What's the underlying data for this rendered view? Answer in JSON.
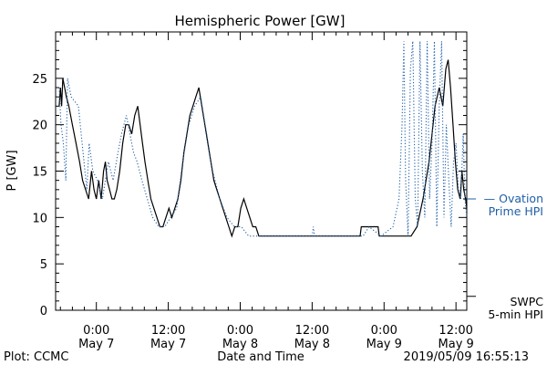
{
  "chart_data": {
    "type": "line",
    "title": "Hemispheric Power [GW]",
    "xlabel": "Date and Time",
    "ylabel": "P [GW]",
    "ylim": [
      0,
      30
    ],
    "xlim": [
      -6.8,
      61.8
    ],
    "x_units": "hours from 2019-05-07 00:00 UT",
    "yticks": [
      0,
      5,
      10,
      15,
      20,
      25
    ],
    "xticks": [
      {
        "x": 0,
        "time": "0:00",
        "date": "May 7"
      },
      {
        "x": 12,
        "time": "12:00",
        "date": "May 7"
      },
      {
        "x": 24,
        "time": "0:00",
        "date": "May 8"
      },
      {
        "x": 36,
        "time": "12:00",
        "date": "May 8"
      },
      {
        "x": 48,
        "time": "0:00",
        "date": "May 9"
      },
      {
        "x": 60,
        "time": "12:00",
        "date": "May 9"
      }
    ],
    "series": [
      {
        "name": "SWPC 5-min HPI",
        "style": "solid",
        "color": "#000000",
        "points": [
          [
            -6.2,
            22
          ],
          [
            -6.0,
            24
          ],
          [
            -5.8,
            22
          ],
          [
            -5.6,
            25
          ],
          [
            -5.3,
            24
          ],
          [
            -5.0,
            23
          ],
          [
            -4.6,
            22
          ],
          [
            -4.0,
            20
          ],
          [
            -3.4,
            18
          ],
          [
            -2.8,
            16
          ],
          [
            -2.3,
            14
          ],
          [
            -1.8,
            13
          ],
          [
            -1.3,
            12
          ],
          [
            -0.8,
            15
          ],
          [
            -0.4,
            13
          ],
          [
            0.0,
            12
          ],
          [
            0.4,
            14
          ],
          [
            0.8,
            12
          ],
          [
            1.2,
            15
          ],
          [
            1.5,
            16
          ],
          [
            1.8,
            14
          ],
          [
            2.2,
            13
          ],
          [
            2.6,
            12
          ],
          [
            3.0,
            12
          ],
          [
            3.4,
            13
          ],
          [
            3.9,
            15
          ],
          [
            4.4,
            18
          ],
          [
            4.9,
            20
          ],
          [
            5.4,
            20
          ],
          [
            5.9,
            19
          ],
          [
            6.4,
            21
          ],
          [
            6.9,
            22
          ],
          [
            7.3,
            20
          ],
          [
            7.7,
            18
          ],
          [
            8.1,
            16
          ],
          [
            8.6,
            14
          ],
          [
            9.1,
            12
          ],
          [
            9.6,
            11
          ],
          [
            10.1,
            10
          ],
          [
            10.6,
            9
          ],
          [
            11.1,
            9
          ],
          [
            11.6,
            10
          ],
          [
            12.1,
            11
          ],
          [
            12.6,
            10
          ],
          [
            13.1,
            11
          ],
          [
            13.6,
            12
          ],
          [
            14.1,
            14
          ],
          [
            14.6,
            17
          ],
          [
            15.1,
            19
          ],
          [
            15.6,
            21
          ],
          [
            16.1,
            22
          ],
          [
            16.6,
            23
          ],
          [
            17.1,
            24
          ],
          [
            17.6,
            22
          ],
          [
            18.1,
            20
          ],
          [
            18.6,
            18
          ],
          [
            19.1,
            16
          ],
          [
            19.6,
            14
          ],
          [
            20.1,
            13
          ],
          [
            20.6,
            12
          ],
          [
            21.1,
            11
          ],
          [
            21.6,
            10
          ],
          [
            22.1,
            9
          ],
          [
            22.6,
            8
          ],
          [
            23.1,
            9
          ],
          [
            23.6,
            9
          ],
          [
            24.1,
            11
          ],
          [
            24.6,
            12
          ],
          [
            25.1,
            11
          ],
          [
            25.6,
            10
          ],
          [
            26.1,
            9
          ],
          [
            26.6,
            9
          ],
          [
            27.1,
            8
          ],
          [
            36,
            8
          ],
          [
            44,
            8
          ],
          [
            44.2,
            9
          ],
          [
            47,
            9
          ],
          [
            47.2,
            8
          ],
          [
            52.5,
            8
          ],
          [
            53.5,
            9
          ],
          [
            54.5,
            12
          ],
          [
            55.5,
            16
          ],
          [
            56.5,
            22
          ],
          [
            57.2,
            24
          ],
          [
            57.8,
            22
          ],
          [
            58.3,
            26
          ],
          [
            58.7,
            27
          ],
          [
            59.1,
            24
          ],
          [
            59.5,
            20
          ],
          [
            59.9,
            16
          ],
          [
            60.3,
            13
          ],
          [
            60.7,
            12
          ],
          [
            61.0,
            15
          ],
          [
            61.3,
            13
          ],
          [
            61.6,
            12
          ],
          [
            61.8,
            11
          ]
        ]
      },
      {
        "name": "Ovation Prime HPI",
        "style": "dotted",
        "color": "#1f5fa8",
        "points": [
          [
            -6.2,
            24
          ],
          [
            -5.9,
            20
          ],
          [
            -5.5,
            18
          ],
          [
            -5.1,
            14
          ],
          [
            -4.8,
            25
          ],
          [
            -4.2,
            23
          ],
          [
            -3.0,
            22
          ],
          [
            -1.6,
            13
          ],
          [
            -1.2,
            18
          ],
          [
            -0.6,
            15
          ],
          [
            0.2,
            14
          ],
          [
            1.0,
            12
          ],
          [
            2.0,
            16
          ],
          [
            2.8,
            14
          ],
          [
            3.6,
            17
          ],
          [
            4.2,
            19
          ],
          [
            5.0,
            21
          ],
          [
            5.6,
            19
          ],
          [
            6.2,
            17
          ],
          [
            6.8,
            16
          ],
          [
            7.6,
            14
          ],
          [
            8.5,
            12
          ],
          [
            9.4,
            10
          ],
          [
            10.4,
            9
          ],
          [
            11.4,
            9
          ],
          [
            12.4,
            10
          ],
          [
            13.4,
            11
          ],
          [
            14.4,
            16
          ],
          [
            15.4,
            20
          ],
          [
            16.4,
            22
          ],
          [
            17.4,
            23
          ],
          [
            18.4,
            19
          ],
          [
            19.4,
            15
          ],
          [
            20.6,
            12
          ],
          [
            21.8,
            10
          ],
          [
            23.0,
            9
          ],
          [
            24.2,
            9
          ],
          [
            25.4,
            8
          ],
          [
            27.0,
            8
          ],
          [
            36.0,
            8
          ],
          [
            36.2,
            9
          ],
          [
            36.4,
            8
          ],
          [
            44.5,
            8
          ],
          [
            45.5,
            9
          ],
          [
            47.5,
            8
          ],
          [
            49.5,
            9
          ],
          [
            50.5,
            12
          ],
          [
            51.0,
            20
          ],
          [
            51.3,
            29
          ],
          [
            51.6,
            14
          ],
          [
            52.0,
            8
          ],
          [
            52.4,
            26
          ],
          [
            52.8,
            29
          ],
          [
            53.2,
            12
          ],
          [
            53.6,
            9
          ],
          [
            54.0,
            29
          ],
          [
            54.4,
            15
          ],
          [
            54.8,
            10
          ],
          [
            55.2,
            29
          ],
          [
            55.6,
            12
          ],
          [
            56.0,
            18
          ],
          [
            56.4,
            29
          ],
          [
            56.8,
            9
          ],
          [
            57.2,
            22
          ],
          [
            57.6,
            29
          ],
          [
            58.0,
            10
          ],
          [
            58.4,
            20
          ],
          [
            58.8,
            14
          ],
          [
            59.2,
            9
          ],
          [
            59.6,
            16
          ],
          [
            60.0,
            18
          ],
          [
            60.4,
            13
          ],
          [
            60.8,
            12
          ],
          [
            61.2,
            19
          ],
          [
            61.5,
            12
          ],
          [
            61.8,
            10
          ]
        ]
      }
    ],
    "legend": [
      {
        "lines": [
          "— Ovation",
          "Prime HPI"
        ],
        "color": "#1f5fa8",
        "ref_y": 12
      },
      {
        "lines": [
          "SWPC",
          "5-min HPI"
        ],
        "color": "#000000",
        "ref_y": 1.5
      }
    ]
  },
  "footer": {
    "left": "Plot: CCMC",
    "right": "2019/05/09 16:55:13"
  }
}
